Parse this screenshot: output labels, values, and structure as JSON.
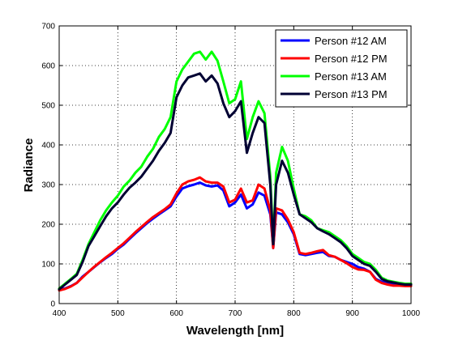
{
  "chart_data": {
    "type": "line",
    "title": "",
    "xlabel": "Wavelength [nm]",
    "ylabel": "Radiance",
    "xlim": [
      400,
      1000
    ],
    "ylim": [
      0,
      700
    ],
    "xticks": [
      400,
      500,
      600,
      700,
      800,
      900,
      1000
    ],
    "yticks": [
      0,
      100,
      200,
      300,
      400,
      500,
      600,
      700
    ],
    "grid": true,
    "legend_position": "top-right",
    "series": [
      {
        "name": "Person #12 AM",
        "color": "#0000ff",
        "x": [
          400,
          410,
          420,
          430,
          440,
          450,
          460,
          470,
          480,
          490,
          500,
          510,
          520,
          530,
          540,
          550,
          560,
          570,
          580,
          590,
          600,
          610,
          620,
          630,
          640,
          650,
          660,
          670,
          680,
          690,
          700,
          710,
          720,
          730,
          740,
          750,
          760,
          765,
          770,
          780,
          790,
          800,
          810,
          820,
          830,
          840,
          850,
          860,
          870,
          880,
          890,
          900,
          910,
          920,
          930,
          940,
          950,
          960,
          970,
          980,
          990,
          1000
        ],
        "y": [
          35,
          38,
          44,
          52,
          68,
          80,
          92,
          104,
          115,
          125,
          138,
          149,
          163,
          177,
          190,
          203,
          214,
          225,
          235,
          245,
          270,
          290,
          296,
          300,
          305,
          298,
          295,
          298,
          285,
          245,
          255,
          275,
          240,
          250,
          280,
          272,
          225,
          140,
          230,
          225,
          205,
          175,
          125,
          122,
          125,
          128,
          130,
          120,
          118,
          110,
          105,
          100,
          92,
          88,
          80,
          62,
          55,
          52,
          50,
          50,
          48,
          48
        ]
      },
      {
        "name": "Person #12 PM",
        "color": "#ff0000",
        "x": [
          400,
          410,
          420,
          430,
          440,
          450,
          460,
          470,
          480,
          490,
          500,
          510,
          520,
          530,
          540,
          550,
          560,
          570,
          580,
          590,
          600,
          610,
          620,
          630,
          640,
          650,
          660,
          670,
          680,
          690,
          700,
          710,
          720,
          730,
          740,
          750,
          760,
          765,
          770,
          780,
          790,
          800,
          810,
          820,
          830,
          840,
          850,
          860,
          870,
          880,
          890,
          900,
          910,
          920,
          930,
          940,
          950,
          960,
          970,
          980,
          990,
          1000
        ],
        "y": [
          33,
          37,
          43,
          52,
          66,
          80,
          93,
          105,
          117,
          128,
          140,
          152,
          166,
          180,
          193,
          206,
          218,
          228,
          238,
          250,
          278,
          300,
          308,
          312,
          318,
          308,
          305,
          305,
          295,
          255,
          262,
          290,
          255,
          260,
          300,
          290,
          235,
          140,
          240,
          235,
          212,
          180,
          128,
          125,
          128,
          132,
          135,
          122,
          118,
          110,
          102,
          92,
          86,
          85,
          80,
          60,
          52,
          48,
          45,
          45,
          44,
          44
        ]
      },
      {
        "name": "Person #13 AM",
        "color": "#00ff00",
        "x": [
          400,
          410,
          420,
          430,
          440,
          450,
          460,
          470,
          480,
          490,
          500,
          510,
          520,
          530,
          540,
          550,
          560,
          570,
          580,
          590,
          600,
          610,
          620,
          630,
          640,
          650,
          660,
          670,
          680,
          690,
          700,
          710,
          720,
          730,
          740,
          750,
          760,
          765,
          770,
          780,
          790,
          800,
          810,
          820,
          830,
          840,
          850,
          860,
          870,
          880,
          890,
          900,
          910,
          920,
          930,
          940,
          950,
          960,
          970,
          980,
          990,
          1000
        ],
        "y": [
          38,
          50,
          62,
          75,
          110,
          150,
          180,
          210,
          235,
          255,
          272,
          295,
          310,
          330,
          345,
          370,
          390,
          420,
          440,
          470,
          560,
          590,
          610,
          630,
          635,
          615,
          635,
          612,
          560,
          505,
          515,
          560,
          415,
          470,
          510,
          480,
          320,
          150,
          330,
          395,
          360,
          290,
          225,
          220,
          210,
          190,
          185,
          180,
          170,
          160,
          145,
          125,
          115,
          105,
          100,
          85,
          65,
          58,
          55,
          52,
          50,
          50
        ]
      },
      {
        "name": "Person #13 PM",
        "color": "#000033",
        "x": [
          400,
          410,
          420,
          430,
          440,
          450,
          460,
          470,
          480,
          490,
          500,
          510,
          520,
          530,
          540,
          550,
          560,
          570,
          580,
          590,
          600,
          610,
          620,
          630,
          640,
          650,
          660,
          670,
          680,
          690,
          700,
          710,
          720,
          730,
          740,
          750,
          760,
          765,
          770,
          780,
          790,
          800,
          810,
          820,
          830,
          840,
          850,
          860,
          870,
          880,
          890,
          900,
          910,
          920,
          930,
          940,
          950,
          960,
          970,
          980,
          990,
          1000
        ],
        "y": [
          36,
          48,
          60,
          72,
          105,
          145,
          170,
          195,
          220,
          240,
          255,
          275,
          292,
          305,
          320,
          340,
          360,
          385,
          405,
          430,
          520,
          550,
          570,
          575,
          580,
          560,
          575,
          555,
          505,
          470,
          485,
          510,
          380,
          430,
          470,
          455,
          300,
          150,
          300,
          360,
          330,
          275,
          225,
          215,
          205,
          190,
          182,
          175,
          165,
          155,
          140,
          120,
          110,
          100,
          95,
          80,
          62,
          56,
          53,
          50,
          48,
          48
        ]
      }
    ]
  }
}
